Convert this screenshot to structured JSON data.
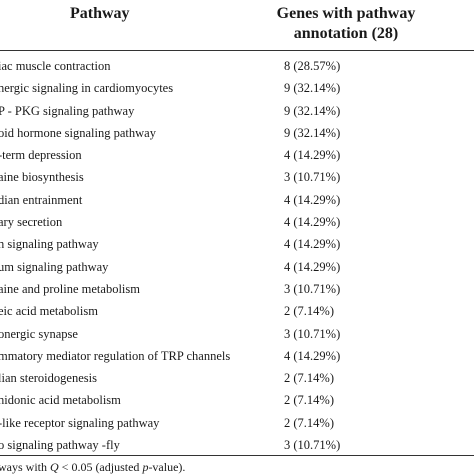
{
  "header": {
    "pathway": "Pathway",
    "genes_line1": "Genes with pathway",
    "genes_line2": "annotation (28)"
  },
  "rows": [
    {
      "pathway": "iac muscle contraction",
      "genes": "8 (28.57%)"
    },
    {
      "pathway": "nergic signaling in cardiomyocytes",
      "genes": "9 (32.14%)"
    },
    {
      "pathway": "P - PKG signaling pathway",
      "genes": "9 (32.14%)"
    },
    {
      "pathway": "oid hormone signaling pathway",
      "genes": "9 (32.14%)"
    },
    {
      "pathway": "-term depression",
      "genes": "4 (14.29%)"
    },
    {
      "pathway": "aine biosynthesis",
      "genes": "3 (10.71%)"
    },
    {
      "pathway": "dian entrainment",
      "genes": "4 (14.29%)"
    },
    {
      "pathway": "ary secretion",
      "genes": "4 (14.29%)"
    },
    {
      "pathway": "n signaling pathway",
      "genes": "4 (14.29%)"
    },
    {
      "pathway": "um signaling pathway",
      "genes": "4 (14.29%)"
    },
    {
      "pathway": "aine and proline metabolism",
      "genes": "3 (10.71%)"
    },
    {
      "pathway": "eic acid metabolism",
      "genes": "2 (7.14%)"
    },
    {
      "pathway": "onergic synapse",
      "genes": "3 (10.71%)"
    },
    {
      "pathway": "mmatory mediator regulation of TRP channels",
      "genes": "4 (14.29%)"
    },
    {
      "pathway": "lian steroidogenesis",
      "genes": "2 (7.14%)"
    },
    {
      "pathway": "nidonic acid metabolism",
      "genes": "2 (7.14%)"
    },
    {
      "pathway": "-like receptor signaling pathway",
      "genes": "2 (7.14%)"
    },
    {
      "pathway": "o signaling pathway -fly",
      "genes": "3 (10.71%)"
    }
  ],
  "footnote": {
    "prefix": "ways with ",
    "q": "Q",
    "mid": " < 0.05 (adjusted ",
    "p": "p",
    "suffix": "-value)."
  }
}
